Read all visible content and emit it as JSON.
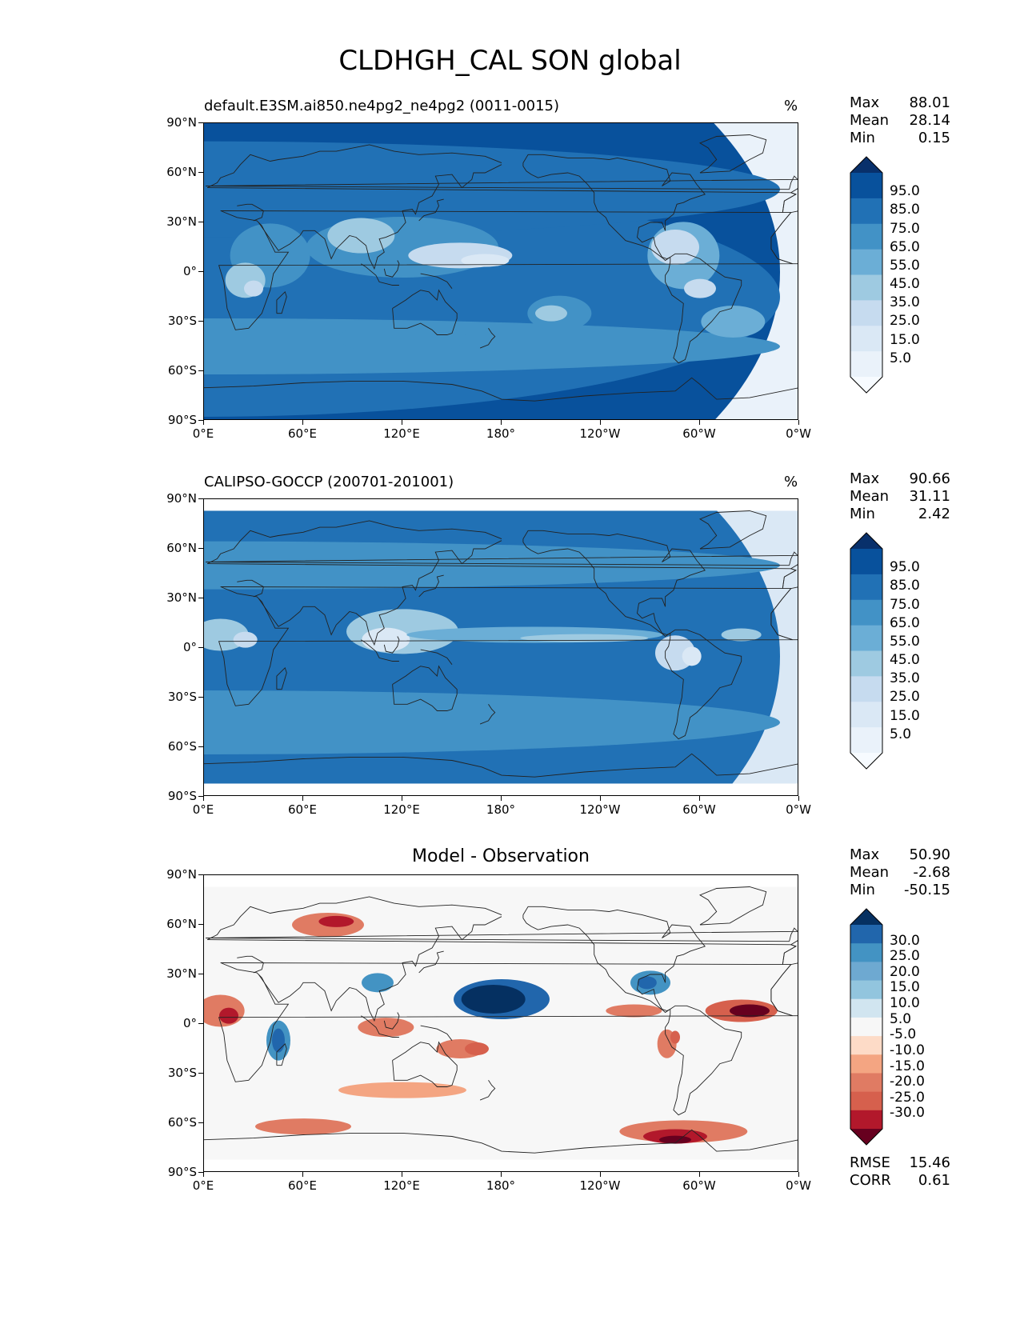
{
  "title": "CLDHGH_CAL SON global",
  "chart_data": [
    {
      "type": "heatmap",
      "title": "default.E3SM.ai850.ne4pg2_ne4pg2 (0011-0015)",
      "units": "%",
      "x_ticks": [
        "0°E",
        "60°E",
        "120°E",
        "180°",
        "120°W",
        "60°W",
        "0°W"
      ],
      "y_ticks": [
        "90°N",
        "60°N",
        "30°N",
        "0°",
        "30°S",
        "60°S",
        "90°S"
      ],
      "xlim": [
        0,
        360
      ],
      "ylim": [
        -90,
        90
      ],
      "stats": [
        {
          "label": "Max",
          "value": "88.01"
        },
        {
          "label": "Mean",
          "value": "28.14"
        },
        {
          "label": "Min",
          "value": "0.15"
        }
      ],
      "colorbar": {
        "ticks": [
          "95.0",
          "85.0",
          "75.0",
          "65.0",
          "55.0",
          "45.0",
          "35.0",
          "25.0",
          "15.0",
          "5.0"
        ],
        "colors": [
          "#08306b",
          "#08519c",
          "#2171b5",
          "#4292c6",
          "#6baed6",
          "#9ecae1",
          "#c6dbef",
          "#dae8f5",
          "#eaf2fa",
          "#f7fbff"
        ]
      }
    },
    {
      "type": "heatmap",
      "title": "CALIPSO-GOCCP (200701-201001)",
      "units": "%",
      "x_ticks": [
        "0°E",
        "60°E",
        "120°E",
        "180°",
        "120°W",
        "60°W",
        "0°W"
      ],
      "y_ticks": [
        "90°N",
        "60°N",
        "30°N",
        "0°",
        "30°S",
        "60°S",
        "90°S"
      ],
      "xlim": [
        0,
        360
      ],
      "ylim": [
        -90,
        90
      ],
      "stats": [
        {
          "label": "Max",
          "value": "90.66"
        },
        {
          "label": "Mean",
          "value": "31.11"
        },
        {
          "label": "Min",
          "value": "2.42"
        }
      ],
      "colorbar": {
        "ticks": [
          "95.0",
          "85.0",
          "75.0",
          "65.0",
          "55.0",
          "45.0",
          "35.0",
          "25.0",
          "15.0",
          "5.0"
        ],
        "colors": [
          "#08306b",
          "#08519c",
          "#2171b5",
          "#4292c6",
          "#6baed6",
          "#9ecae1",
          "#c6dbef",
          "#dae8f5",
          "#eaf2fa",
          "#f7fbff"
        ]
      }
    },
    {
      "type": "heatmap",
      "title": "Model - Observation",
      "units": "",
      "x_ticks": [
        "0°E",
        "60°E",
        "120°E",
        "180°",
        "120°W",
        "60°W",
        "0°W"
      ],
      "y_ticks": [
        "90°N",
        "60°N",
        "30°N",
        "0°",
        "30°S",
        "60°S",
        "90°S"
      ],
      "xlim": [
        0,
        360
      ],
      "ylim": [
        -90,
        90
      ],
      "stats": [
        {
          "label": "Max",
          "value": "50.90"
        },
        {
          "label": "Mean",
          "value": "-2.68"
        },
        {
          "label": "Min",
          "value": "-50.15"
        }
      ],
      "metrics": [
        {
          "label": "RMSE",
          "value": "15.46"
        },
        {
          "label": "CORR",
          "value": "0.61"
        }
      ],
      "colorbar": {
        "ticks": [
          "30.0",
          "25.0",
          "20.0",
          "15.0",
          "10.0",
          "5.0",
          "-5.0",
          "-10.0",
          "-15.0",
          "-20.0",
          "-25.0",
          "-30.0"
        ],
        "colors": [
          "#053061",
          "#2166ac",
          "#4393c3",
          "#6ea9d1",
          "#92c5de",
          "#d1e5f0",
          "#f7f7f7",
          "#fddbc7",
          "#f4a582",
          "#e07b63",
          "#d6604d",
          "#b2182b",
          "#67001f"
        ]
      }
    }
  ]
}
